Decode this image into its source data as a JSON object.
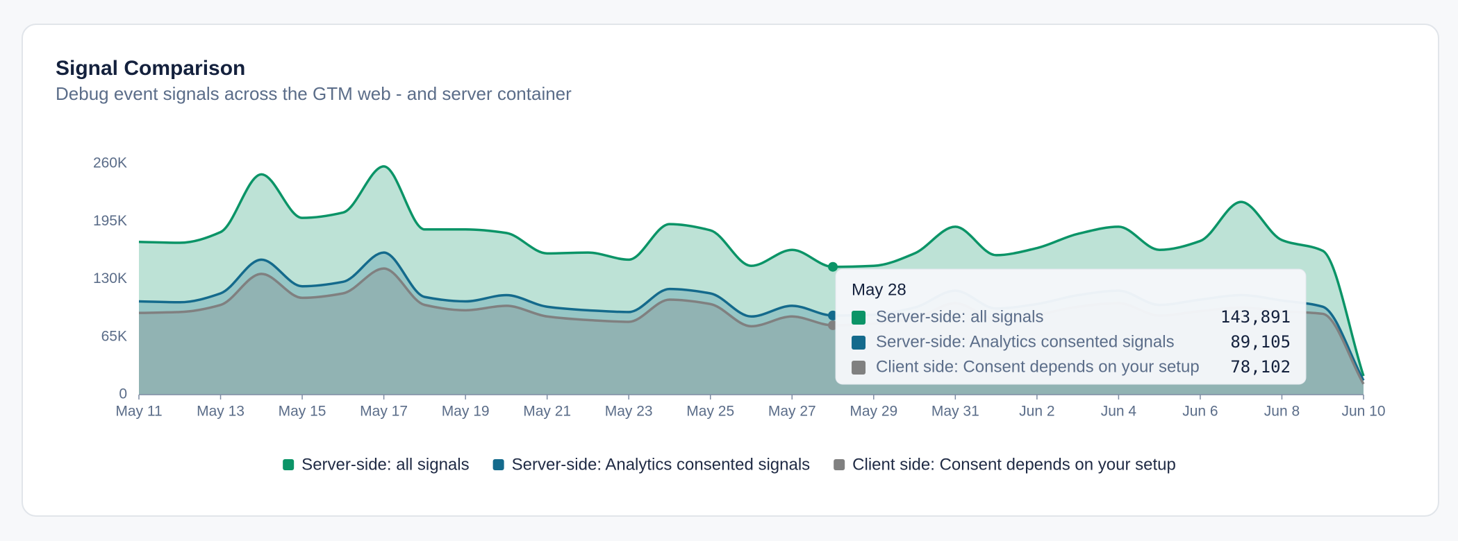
{
  "chart_data": {
    "type": "area",
    "title": "Signal Comparison",
    "subtitle": "Debug event signals across the GTM web - and server container",
    "categories": [
      "May 11",
      null,
      "May 13",
      null,
      "May 15",
      null,
      "May 17",
      null,
      "May 19",
      null,
      "May 21",
      null,
      "May 23",
      null,
      "May 25",
      null,
      "May 27",
      "May 28",
      "May 29",
      null,
      "May 31",
      null,
      "Jun 2",
      null,
      "Jun 4",
      null,
      "Jun 6",
      null,
      "Jun 8",
      null,
      "Jun 10"
    ],
    "ylim": [
      0,
      260000
    ],
    "yticks": [
      0,
      {
        "value": 65000,
        "label": "65K"
      },
      {
        "value": 130000,
        "label": "130K"
      },
      {
        "value": 195000,
        "label": "195K"
      },
      {
        "value": 260000,
        "label": "260K"
      }
    ],
    "grid": false,
    "legend": "bottom",
    "series": [
      {
        "name": "Server-side: all signals",
        "color": "#0b9467",
        "values": [
          172000,
          171000,
          183000,
          248000,
          199000,
          205000,
          257000,
          186000,
          186000,
          182000,
          159000,
          160000,
          152000,
          192000,
          185000,
          145000,
          163000,
          143891,
          145000,
          159000,
          189000,
          157000,
          165000,
          181000,
          189000,
          163000,
          173000,
          217000,
          174000,
          162000,
          21000
        ],
        "value_labels": [
          null,
          null,
          null,
          null,
          null,
          null,
          null,
          null,
          null,
          null,
          null,
          null,
          null,
          null,
          null,
          null,
          null,
          "143,891",
          null,
          null,
          null,
          null,
          null,
          null,
          null,
          null,
          null,
          null,
          null,
          null,
          null
        ]
      },
      {
        "name": "Server-side: Analytics consented signals",
        "color": "#146a8c",
        "values": [
          105000,
          104000,
          114000,
          152000,
          122000,
          127000,
          160000,
          110000,
          105000,
          112000,
          99000,
          95000,
          93000,
          119000,
          114000,
          88000,
          100000,
          89105,
          90000,
          98000,
          117000,
          97000,
          102000,
          112000,
          117000,
          101000,
          107000,
          112000,
          106000,
          99000,
          16000
        ],
        "value_labels": [
          null,
          null,
          null,
          null,
          null,
          null,
          null,
          null,
          null,
          null,
          null,
          null,
          null,
          null,
          null,
          null,
          null,
          "89,105",
          null,
          null,
          null,
          null,
          null,
          null,
          null,
          null,
          null,
          null,
          null,
          null,
          null
        ]
      },
      {
        "name": "Client side: Consent depends on your setup",
        "color": "#808080",
        "values": [
          92000,
          93000,
          101000,
          136000,
          109000,
          114000,
          142000,
          101000,
          95000,
          100000,
          88000,
          84000,
          82000,
          107000,
          102000,
          77000,
          88000,
          78102,
          80000,
          86000,
          103000,
          85000,
          90000,
          99000,
          103000,
          89000,
          94000,
          98000,
          94000,
          91000,
          12000
        ],
        "value_labels": [
          null,
          null,
          null,
          null,
          null,
          null,
          null,
          null,
          null,
          null,
          null,
          null,
          null,
          null,
          null,
          null,
          null,
          "78,102",
          null,
          null,
          null,
          null,
          null,
          null,
          null,
          null,
          null,
          null,
          null,
          null,
          null
        ]
      }
    ]
  }
}
